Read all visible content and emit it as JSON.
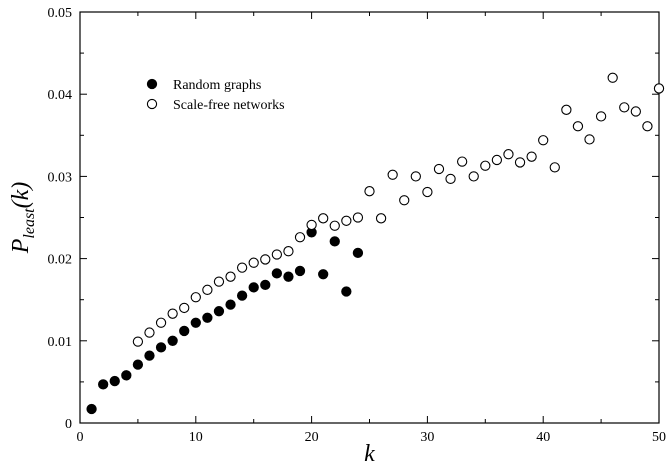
{
  "chart_data": {
    "type": "scatter",
    "xlabel": "k",
    "ylabel_main": "P",
    "ylabel_sub": "least",
    "ylabel_suffix": "(k)",
    "xlim": [
      0,
      50
    ],
    "ylim": [
      0,
      0.05
    ],
    "xticks": [
      0,
      10,
      20,
      30,
      40,
      50
    ],
    "yticks": [
      0,
      0.01,
      0.02,
      0.03,
      0.04,
      0.05
    ],
    "xtick_labels": [
      "0",
      "10",
      "20",
      "30",
      "40",
      "50"
    ],
    "ytick_labels": [
      "0",
      "0.01",
      "0.02",
      "0.03",
      "0.04",
      "0.05"
    ],
    "grid": false,
    "legend_position": "top-left",
    "series": [
      {
        "name": "Random graphs",
        "marker": "filled-circle",
        "color": "#000000",
        "x": [
          1,
          2,
          3,
          4,
          5,
          6,
          7,
          8,
          9,
          10,
          11,
          12,
          13,
          14,
          15,
          16,
          17,
          18,
          19,
          20,
          21,
          22,
          23,
          24
        ],
        "y": [
          0.0017,
          0.0047,
          0.0051,
          0.0058,
          0.0071,
          0.0082,
          0.0092,
          0.01,
          0.0112,
          0.0122,
          0.0128,
          0.0136,
          0.0144,
          0.0155,
          0.0165,
          0.0168,
          0.0182,
          0.0178,
          0.0185,
          0.0232,
          0.0181,
          0.0221,
          0.016,
          0.0207
        ]
      },
      {
        "name": "Scale-free networks",
        "marker": "open-circle",
        "color": "#000000",
        "x": [
          5,
          6,
          7,
          8,
          9,
          10,
          11,
          12,
          13,
          14,
          15,
          16,
          17,
          18,
          19,
          20,
          21,
          22,
          23,
          24,
          25,
          26,
          27,
          28,
          29,
          30,
          31,
          32,
          33,
          34,
          35,
          36,
          37,
          38,
          39,
          40,
          41,
          42,
          43,
          44,
          45,
          46,
          47,
          48,
          49,
          50
        ],
        "y": [
          0.0099,
          0.011,
          0.0122,
          0.0133,
          0.014,
          0.0153,
          0.0162,
          0.0172,
          0.0178,
          0.0189,
          0.0195,
          0.0199,
          0.0205,
          0.0209,
          0.0226,
          0.0241,
          0.0249,
          0.024,
          0.0246,
          0.025,
          0.0282,
          0.0249,
          0.0302,
          0.0271,
          0.03,
          0.0281,
          0.0309,
          0.0297,
          0.0318,
          0.03,
          0.0313,
          0.032,
          0.0327,
          0.0317,
          0.0324,
          0.0344,
          0.0311,
          0.0381,
          0.0361,
          0.0345,
          0.0373,
          0.042,
          0.0384,
          0.0379,
          0.0361,
          0.0407
        ]
      }
    ]
  }
}
